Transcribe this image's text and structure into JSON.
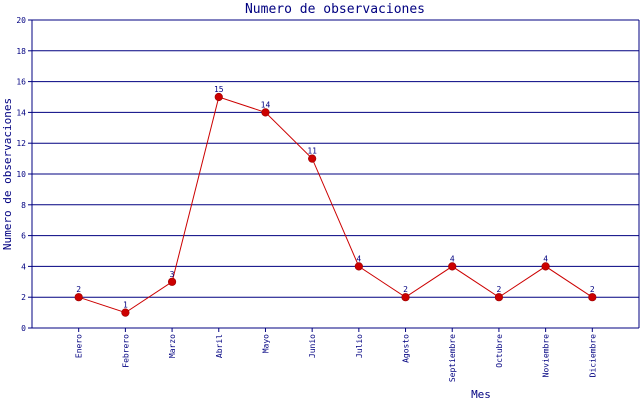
{
  "chart_data": {
    "type": "line",
    "title": "Numero de observaciones",
    "xlabel": "Mes",
    "ylabel": "Numero de observaciones",
    "categories": [
      "Enero",
      "Febrero",
      "Marzo",
      "Abril",
      "Mayo",
      "Junio",
      "Julio",
      "Agosto",
      "Septiembre",
      "Octubre",
      "Noviembre",
      "Diciembre"
    ],
    "series": [
      {
        "values": [
          2,
          1,
          3,
          15,
          14,
          11,
          4,
          2,
          4,
          2,
          4,
          2
        ]
      }
    ],
    "ylim": [
      0,
      20
    ],
    "yticks": [
      0,
      2,
      4,
      6,
      8,
      10,
      12,
      14,
      16,
      18,
      20
    ],
    "grid": true,
    "colors": {
      "line": "#cc0000",
      "marker": "#cc0000",
      "grid": "#000080",
      "axis": "#000080",
      "text": "#000080"
    }
  }
}
